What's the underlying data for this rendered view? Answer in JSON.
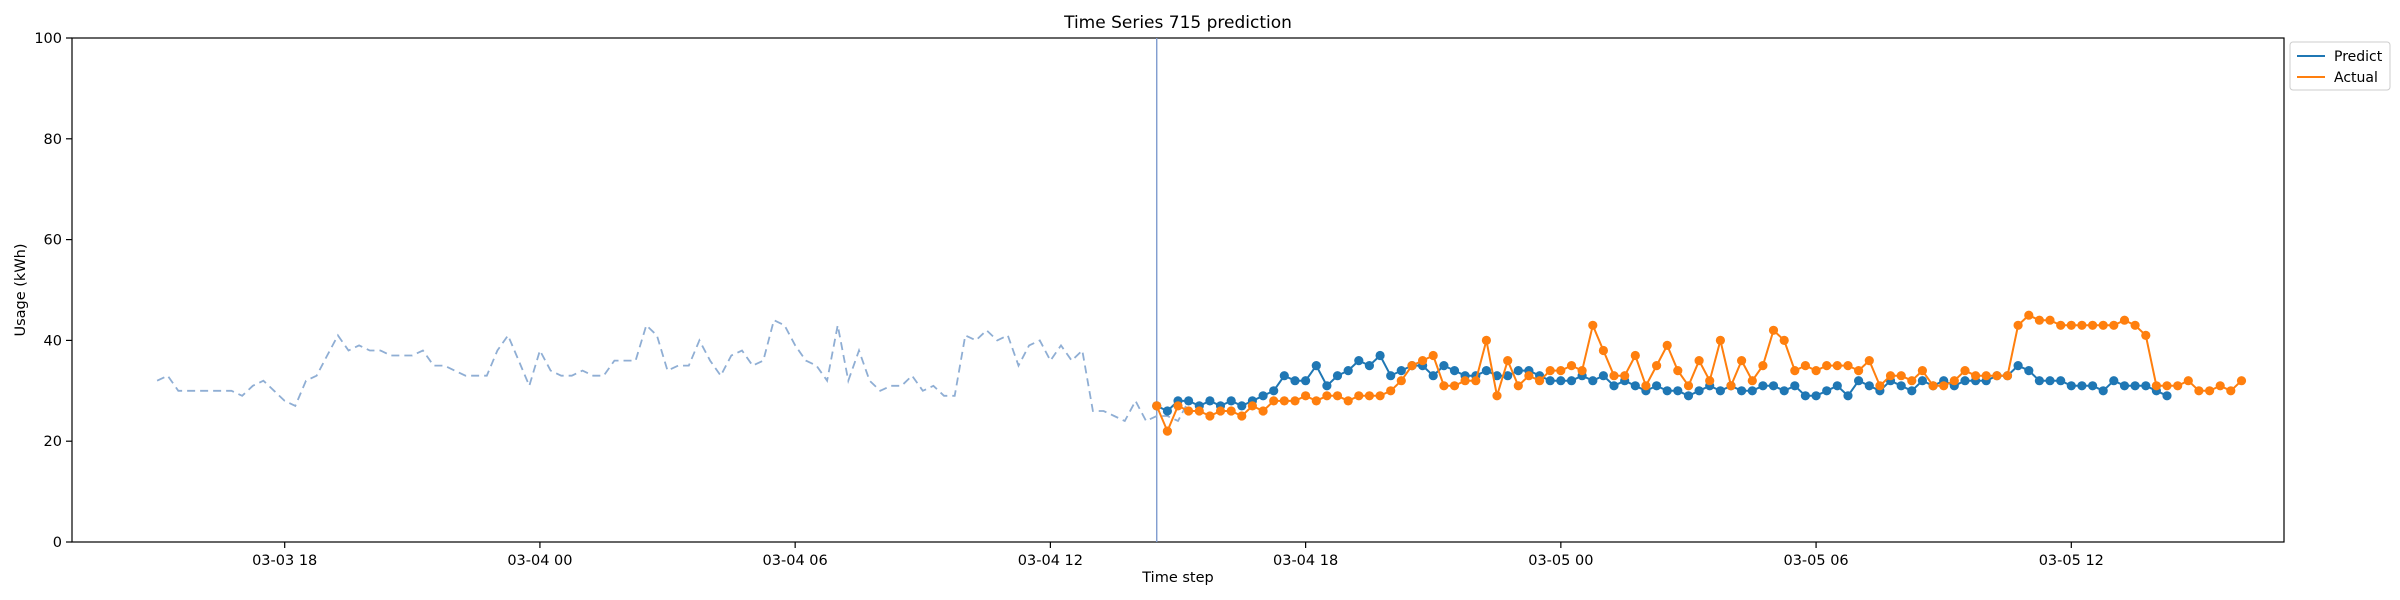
{
  "chart_data": {
    "type": "line",
    "title": "Time Series 715 prediction",
    "xlabel": "Time step",
    "ylabel": "Usage (kWh)",
    "ylim": [
      0,
      100
    ],
    "yticks": [
      0,
      20,
      40,
      60,
      80,
      100
    ],
    "xlim": [
      "2024-03-03 13:00",
      "2024-03-05 17:00"
    ],
    "xticks": [
      "03-03 18",
      "03-04 00",
      "03-04 06",
      "03-04 12",
      "03-04 18",
      "03-05 00",
      "03-05 06",
      "03-05 12"
    ],
    "forecast_start": "2024-03-04 14:30",
    "legend": {
      "placement": "outside-top-right",
      "entries": [
        "Predict",
        "Actual"
      ]
    },
    "colors": {
      "predict": "#1f77b4",
      "actual": "#ff7f0e",
      "history": "#8faed4",
      "divider": "#7f9ccf"
    },
    "history": {
      "start": "2024-03-03 15:00",
      "step_minutes": 15,
      "values": [
        32,
        33,
        30,
        30,
        30,
        30,
        30,
        30,
        29,
        31,
        32,
        30,
        28,
        27,
        32,
        33,
        37,
        41,
        38,
        39,
        38,
        38,
        37,
        37,
        37,
        38,
        35,
        35,
        34,
        33,
        33,
        33,
        38,
        41,
        36,
        31,
        38,
        34,
        33,
        33,
        34,
        33,
        33,
        36,
        36,
        36,
        43,
        41,
        34,
        35,
        35,
        40,
        36,
        33,
        37,
        38,
        35,
        36,
        44,
        43,
        39,
        36,
        35,
        32,
        43,
        32,
        38,
        32,
        30,
        31,
        31,
        33,
        30,
        31,
        29,
        29,
        41,
        40,
        42,
        40,
        41,
        35,
        39,
        40,
        36,
        39,
        36,
        38,
        26,
        26,
        25,
        24,
        28,
        24,
        25,
        25,
        24,
        28
      ]
    },
    "series": [
      {
        "name": "Predict",
        "start": "2024-03-04 14:30",
        "step_minutes": 15,
        "values": [
          27,
          26,
          28,
          28,
          27,
          28,
          27,
          28,
          27,
          28,
          29,
          30,
          33,
          32,
          32,
          35,
          31,
          33,
          34,
          36,
          35,
          37,
          33,
          34,
          35,
          35,
          33,
          35,
          34,
          33,
          33,
          34,
          33,
          33,
          34,
          34,
          33,
          32,
          32,
          32,
          33,
          32,
          33,
          31,
          32,
          31,
          30,
          31,
          30,
          30,
          29,
          30,
          31,
          30,
          31,
          30,
          30,
          31,
          31,
          30,
          31,
          29,
          29,
          30,
          31,
          29,
          32,
          31,
          30,
          32,
          31,
          30,
          32,
          31,
          32,
          31,
          32,
          32,
          32,
          33,
          33,
          35,
          34,
          32,
          32,
          32,
          31,
          31,
          31,
          30,
          32,
          31,
          31,
          31,
          30,
          29
        ]
      },
      {
        "name": "Actual",
        "start": "2024-03-04 14:30",
        "step_minutes": 15,
        "values": [
          27,
          22,
          27,
          26,
          26,
          25,
          26,
          26,
          25,
          27,
          26,
          28,
          28,
          28,
          29,
          28,
          29,
          29,
          28,
          29,
          29,
          29,
          30,
          32,
          35,
          36,
          37,
          31,
          31,
          32,
          32,
          40,
          29,
          36,
          31,
          33,
          32,
          34,
          34,
          35,
          34,
          43,
          38,
          33,
          33,
          37,
          31,
          35,
          39,
          34,
          31,
          36,
          32,
          40,
          31,
          36,
          32,
          35,
          42,
          40,
          34,
          35,
          34,
          35,
          35,
          35,
          34,
          36,
          31,
          33,
          33,
          32,
          34,
          31,
          31,
          32,
          34,
          33,
          33,
          33,
          33,
          43,
          45,
          44,
          44,
          43,
          43,
          43,
          43,
          43,
          43,
          44,
          43,
          41,
          31,
          31,
          31,
          32,
          30,
          30,
          31,
          30,
          32
        ]
      }
    ]
  }
}
